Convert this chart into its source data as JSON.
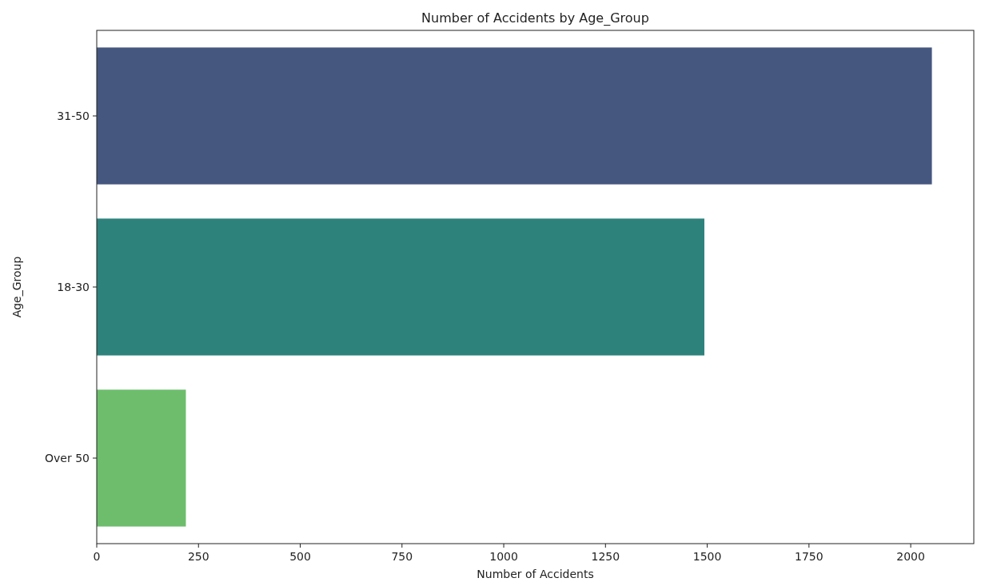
{
  "chart_data": {
    "type": "bar",
    "orientation": "horizontal",
    "title": "Number of Accidents by Age_Group",
    "xlabel": "Number of Accidents",
    "ylabel": "Age_Group",
    "categories": [
      "31-50",
      "18-30",
      "Over 50"
    ],
    "values": [
      2052,
      1493,
      219
    ],
    "colors": [
      "#45577f",
      "#2e827c",
      "#6dbd6d"
    ],
    "xlim": [
      0,
      2155
    ],
    "xticks": [
      0,
      250,
      500,
      750,
      1000,
      1250,
      1500,
      1750,
      2000
    ],
    "grid": false
  }
}
